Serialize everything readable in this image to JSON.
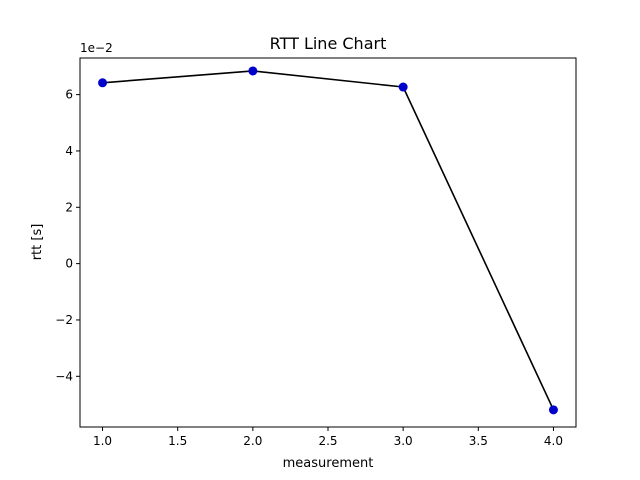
{
  "chart_data": {
    "type": "line",
    "title": "RTT Line Chart",
    "xlabel": "measurement",
    "ylabel": "rtt [s]",
    "y_offset_label": "1e−2",
    "y_scale_exponent": -2,
    "xlim": [
      0.85,
      4.15
    ],
    "ylim": [
      -5.8,
      7.3
    ],
    "x_ticks": [
      1.0,
      1.5,
      2.0,
      2.5,
      3.0,
      3.5,
      4.0
    ],
    "x_tick_labels": [
      "1.0",
      "1.5",
      "2.0",
      "2.5",
      "3.0",
      "3.5",
      "4.0"
    ],
    "y_ticks": [
      -4,
      -2,
      0,
      2,
      4,
      6
    ],
    "y_tick_labels": [
      "−4",
      "−2",
      "0",
      "2",
      "4",
      "6"
    ],
    "grid": false,
    "series": [
      {
        "x": [
          1.0,
          2.0,
          3.0,
          4.0
        ],
        "y": [
          0.0642,
          0.0684,
          0.0627,
          -0.0519
        ],
        "line_color": "#000000",
        "marker_color": "#0000cc"
      }
    ]
  }
}
